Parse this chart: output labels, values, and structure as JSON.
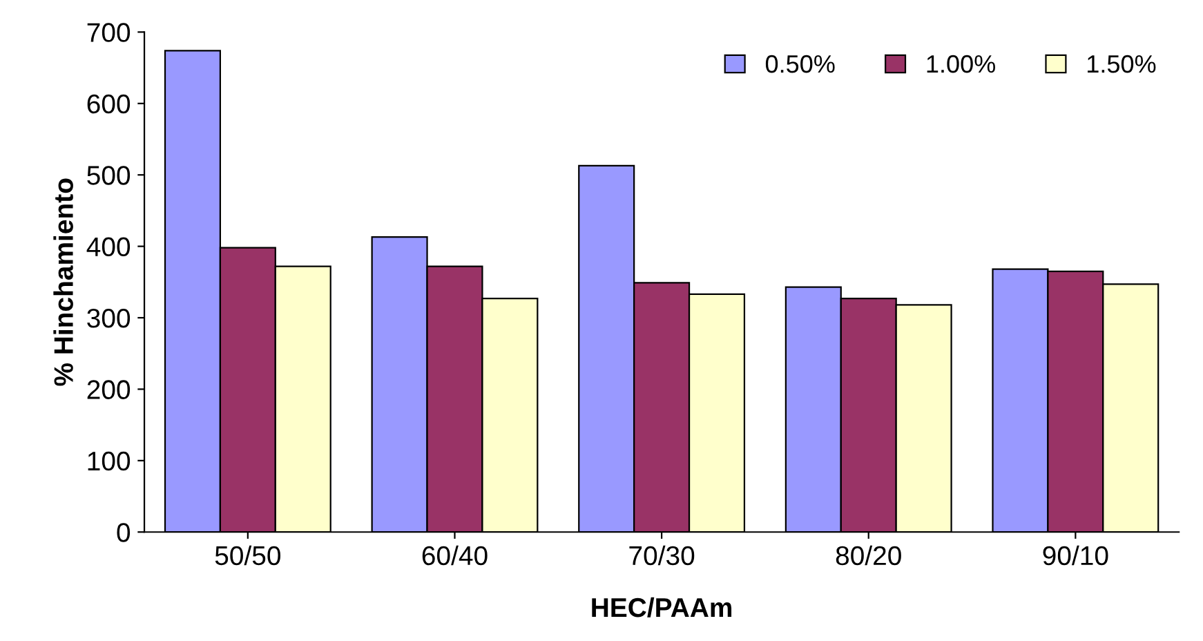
{
  "chart_data": {
    "type": "bar",
    "xlabel": "HEC/PAAm",
    "ylabel": "% Hinchamiento",
    "categories": [
      "50/50",
      "60/40",
      "70/30",
      "80/20",
      "90/10"
    ],
    "series": [
      {
        "name": "0.50%",
        "color": "#9999ff",
        "values": [
          674,
          413,
          513,
          343,
          368
        ]
      },
      {
        "name": "1.00%",
        "color": "#993366",
        "values": [
          398,
          372,
          349,
          327,
          365
        ]
      },
      {
        "name": "1.50%",
        "color": "#ffffcc",
        "values": [
          372,
          327,
          333,
          318,
          347
        ]
      }
    ],
    "ylim": [
      0,
      700
    ],
    "yticks": [
      0,
      100,
      200,
      300,
      400,
      500,
      600,
      700
    ],
    "grid": false,
    "legend": "top right"
  }
}
